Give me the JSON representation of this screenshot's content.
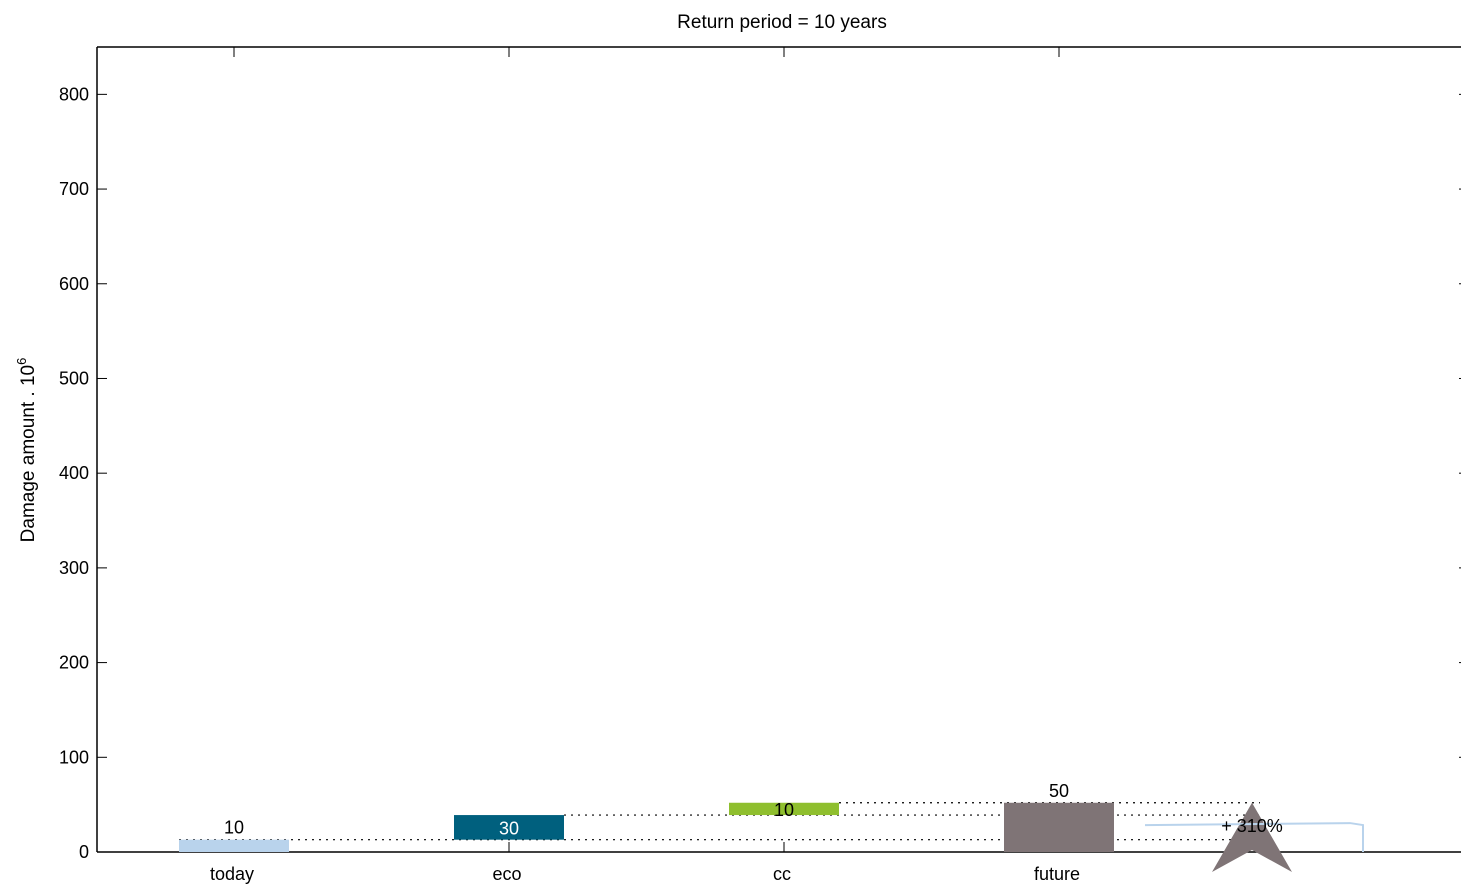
{
  "chart_data": {
    "type": "bar",
    "title": "Return period = 10 years",
    "ylabel": "Damage amount . 10",
    "ylabel_exp": "6",
    "xlabel": "",
    "ylim": [
      0,
      850
    ],
    "yticks": [
      0,
      100,
      200,
      300,
      400,
      500,
      600,
      700,
      800
    ],
    "categories": [
      "today",
      "eco",
      "cc",
      "future"
    ],
    "waterfall": [
      {
        "category": "today",
        "base": 0,
        "value": 13,
        "label": "10",
        "color": "#b9d3ec",
        "label_color": "#000000",
        "label_inside": false
      },
      {
        "category": "eco",
        "base": 13,
        "value": 26,
        "label": "30",
        "color": "#00607e",
        "label_color": "#ffffff",
        "label_inside": true
      },
      {
        "category": "cc",
        "base": 39,
        "value": 13,
        "label": "10",
        "color": "#8fbf2e",
        "label_color": "#000000",
        "label_inside": true
      },
      {
        "category": "future",
        "base": 0,
        "value": 52,
        "label": "50",
        "color": "#7f7476",
        "label_color": "#000000",
        "label_inside": false
      }
    ],
    "change_annotation": "+ 310%",
    "grid": false
  }
}
